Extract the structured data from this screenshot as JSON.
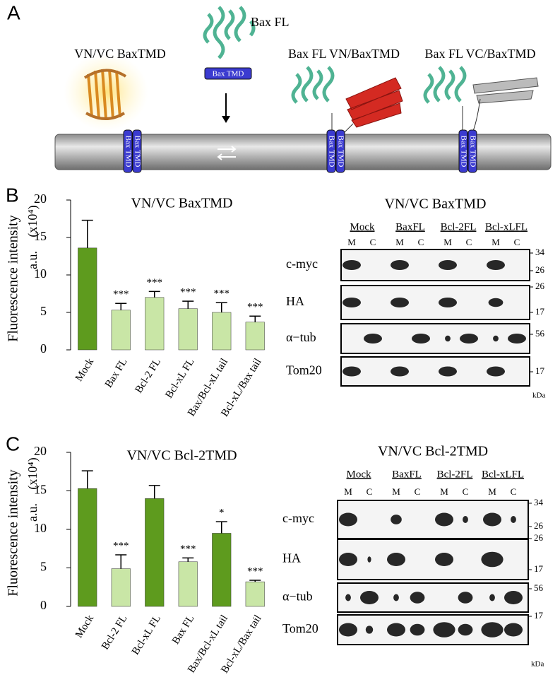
{
  "panels": [
    "A",
    "B",
    "C"
  ],
  "panel_a": {
    "bax_fl": "Bax FL",
    "labels": [
      "VN/VC BaxTMD",
      "Bax FL VN/BaxTMD",
      "Bax FL VC/BaxTMD"
    ],
    "tmd_label": "Bax TMD"
  },
  "chart_data": [
    {
      "type": "bar",
      "title": "VN/VC BaxTMD",
      "y_label": "Fluorescence intensity",
      "y_unit": "a.u.",
      "y_scale": "(x10⁴)",
      "categories": [
        "Mock",
        "Bax FL",
        "Bcl-2 FL",
        "Bcl-xL FL",
        "Bax/Bcl-xL tail",
        "Bcl-xL/Bax tail"
      ],
      "values": [
        13.6,
        5.3,
        7.0,
        5.5,
        5.0,
        3.7
      ],
      "errors": [
        3.7,
        0.9,
        0.8,
        1.0,
        1.3,
        0.8
      ],
      "colors": [
        "#5e9b1e",
        "#c9e6a6",
        "#c9e6a6",
        "#c9e6a6",
        "#c9e6a6",
        "#c9e6a6"
      ],
      "annotations": [
        null,
        "***",
        "***",
        "***",
        "***",
        "***"
      ],
      "ylim": [
        0,
        20
      ],
      "yticks": [
        0,
        5,
        10,
        15,
        20
      ]
    },
    {
      "type": "bar",
      "title": "VN/VC Bcl-2TMD",
      "y_label": "Fluorescence intensity",
      "y_unit": "a.u.",
      "y_scale": "(x10⁴)",
      "categories": [
        "Mock",
        "Bcl-2 FL",
        "Bcl-xL FL",
        "Bax FL",
        "Bax/Bcl-xL tail",
        "Bcl-xL/Bax tail"
      ],
      "values": [
        15.3,
        4.9,
        14.0,
        5.8,
        9.5,
        3.2
      ],
      "errors": [
        2.3,
        1.8,
        1.7,
        0.5,
        1.5,
        0.2
      ],
      "colors": [
        "#5e9b1e",
        "#c9e6a6",
        "#5e9b1e",
        "#c9e6a6",
        "#5e9b1e",
        "#c9e6a6"
      ],
      "annotations": [
        null,
        "***",
        null,
        "***",
        "*",
        "***"
      ],
      "ylim": [
        0,
        20
      ],
      "yticks": [
        0,
        5,
        10,
        15,
        20
      ]
    }
  ],
  "blots": [
    {
      "title": "VN/VC BaxTMD",
      "groups": [
        "Mock",
        "BaxFL",
        "Bcl-2FL",
        "Bcl-xLFL"
      ],
      "lanes": [
        "M",
        "C",
        "M",
        "C",
        "M",
        "C",
        "M",
        "C"
      ],
      "rows": [
        {
          "label": "c-myc",
          "markers": [
            "34",
            "26"
          ]
        },
        {
          "label": "HA",
          "markers": [
            "26",
            "17"
          ]
        },
        {
          "label": "α−tub",
          "markers": [
            "56"
          ]
        },
        {
          "label": "Tom20",
          "markers": [
            "17"
          ]
        }
      ],
      "unit": "kDa"
    },
    {
      "title": "VN/VC Bcl-2TMD",
      "groups": [
        "Mock",
        "BaxFL",
        "Bcl-2FL",
        "Bcl-xLFL"
      ],
      "lanes": [
        "M",
        "C",
        "M",
        "C",
        "M",
        "C",
        "M",
        "C"
      ],
      "rows": [
        {
          "label": "c-myc",
          "markers": [
            "34",
            "26"
          ]
        },
        {
          "label": "HA",
          "markers": [
            "26",
            "17"
          ]
        },
        {
          "label": "α−tub",
          "markers": [
            "56"
          ]
        },
        {
          "label": "Tom20",
          "markers": [
            "17"
          ]
        }
      ],
      "unit": "kDa"
    }
  ]
}
